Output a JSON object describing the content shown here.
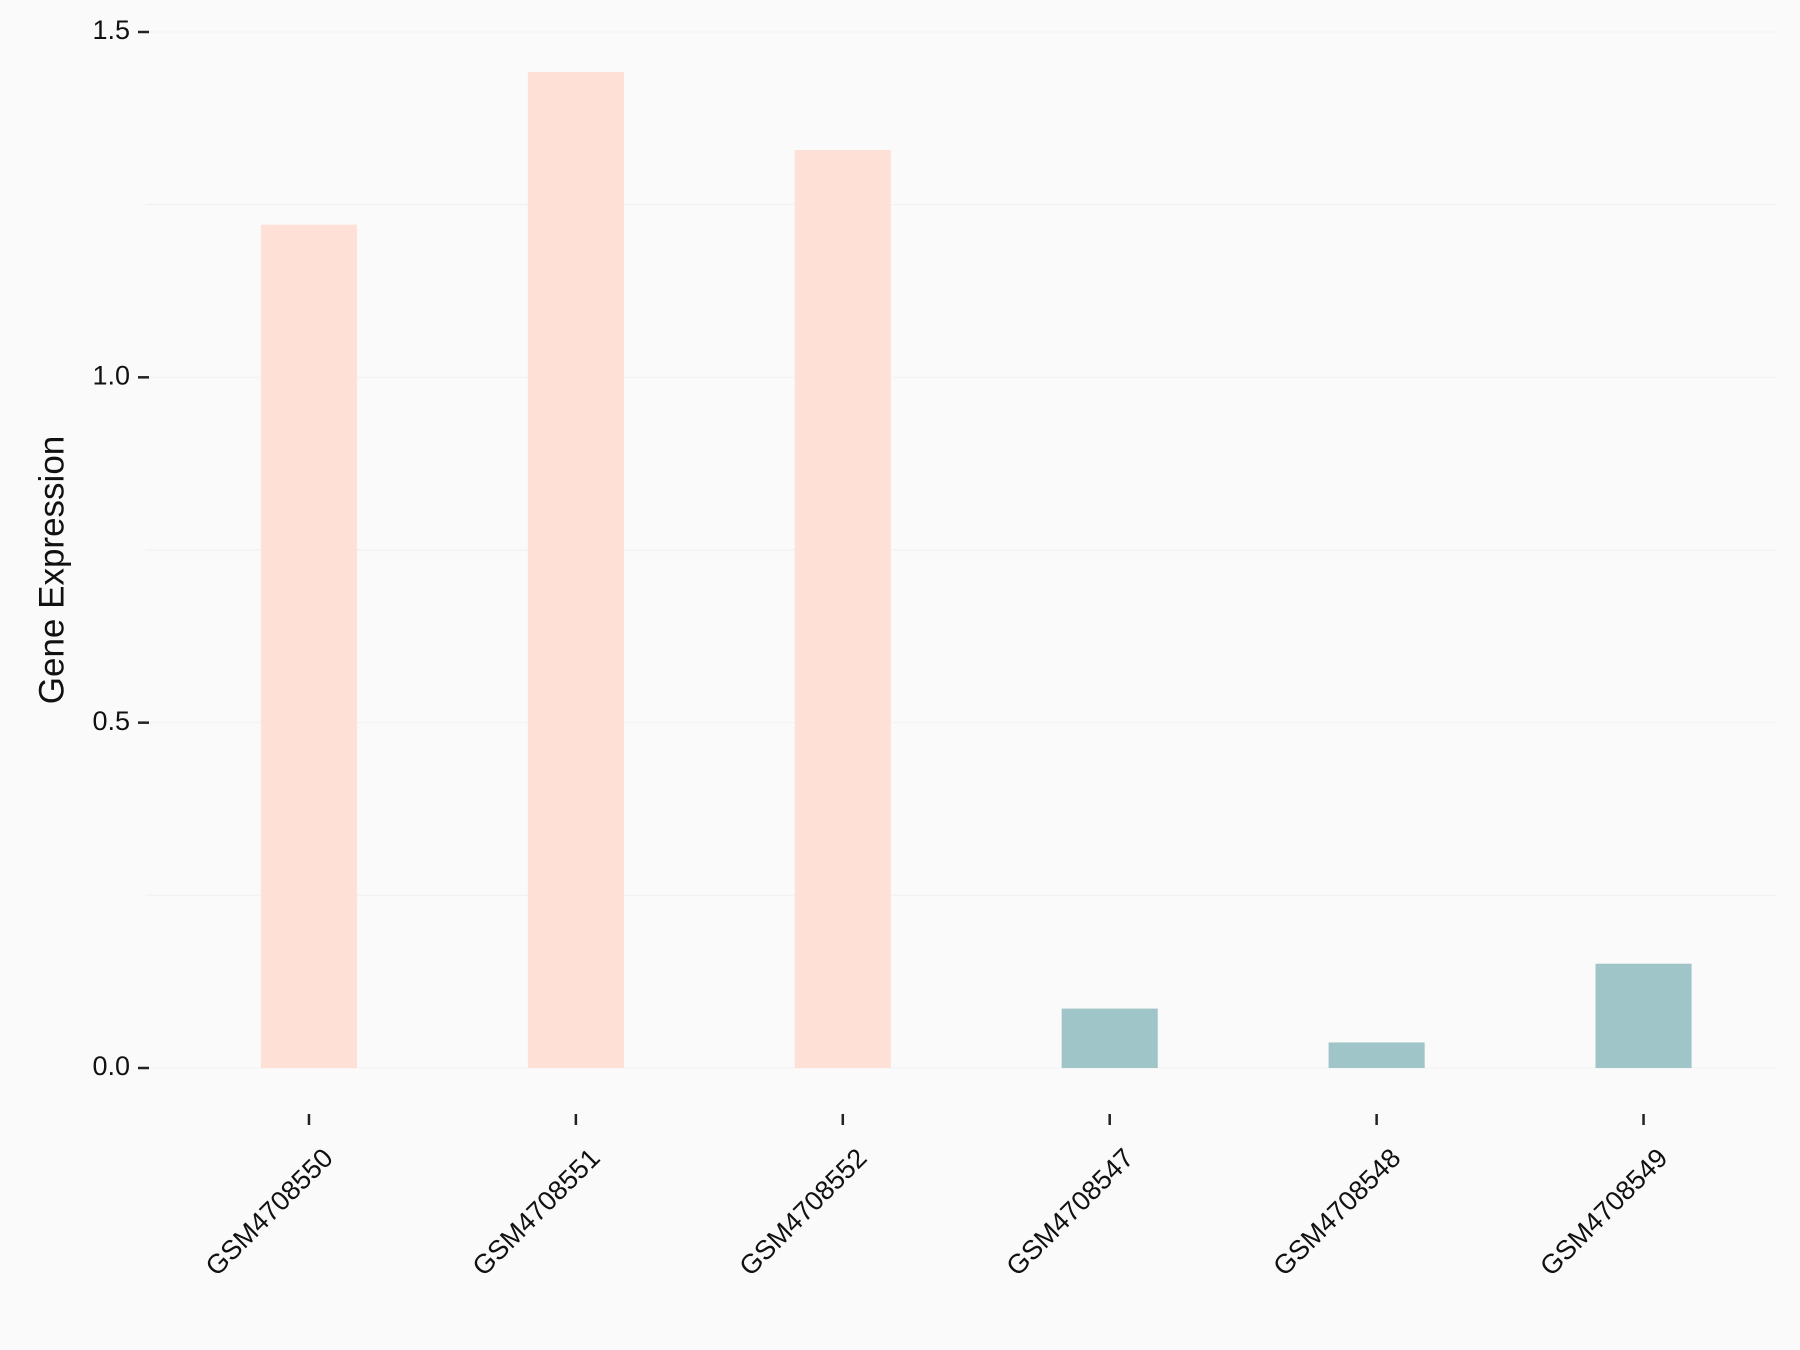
{
  "chart_data": {
    "type": "bar",
    "y_label": "Gene Expression",
    "categories": [
      "GSM4708550",
      "GSM4708551",
      "GSM4708552",
      "GSM4708547",
      "GSM4708548",
      "GSM4708549"
    ],
    "values": [
      1.221,
      1.442,
      1.329,
      0.086,
      0.037,
      0.151
    ],
    "colors": [
      "#fee0d6",
      "#fee0d6",
      "#fee0d6",
      "#9fc5c9",
      "#9fc5c9",
      "#9fc5c9"
    ],
    "ylim": [
      0,
      1.5
    ],
    "yticks": [
      {
        "value": 0,
        "label": "0.0"
      },
      0.5,
      {
        "value": 1,
        "label": "1.0"
      },
      1.5
    ],
    "minor_yticks": [
      0.25,
      0.75,
      1.25
    ],
    "grid": true
  }
}
